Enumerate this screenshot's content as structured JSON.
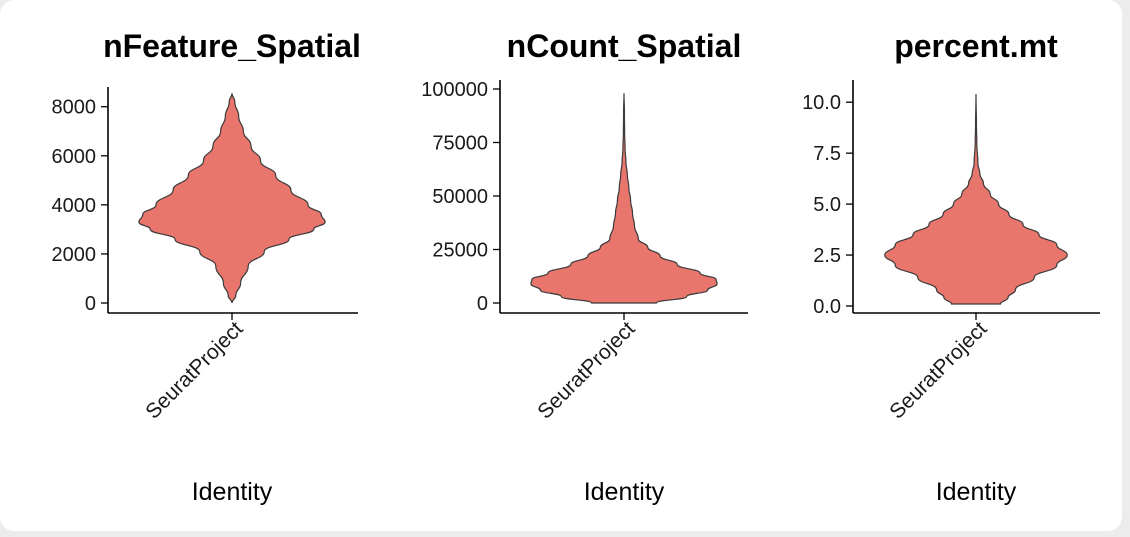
{
  "chart_data": [
    {
      "type": "violin",
      "title": "nFeature_Spatial",
      "xlabel": "Identity",
      "ylabel": "",
      "categories": [
        "SeuratProject"
      ],
      "yticks": [
        0,
        2000,
        4000,
        6000,
        8000
      ],
      "ylim": [
        0,
        8600
      ],
      "fill": "#e8766d",
      "violin_profile": [
        [
          0,
          0.0
        ],
        [
          300,
          0.04
        ],
        [
          800,
          0.09
        ],
        [
          1500,
          0.17
        ],
        [
          2100,
          0.34
        ],
        [
          2600,
          0.6
        ],
        [
          3000,
          0.86
        ],
        [
          3300,
          0.98
        ],
        [
          3600,
          0.94
        ],
        [
          4000,
          0.8
        ],
        [
          4600,
          0.62
        ],
        [
          5200,
          0.46
        ],
        [
          5800,
          0.3
        ],
        [
          6400,
          0.2
        ],
        [
          7000,
          0.12
        ],
        [
          7600,
          0.07
        ],
        [
          8200,
          0.03
        ],
        [
          8550,
          0.0
        ]
      ]
    },
    {
      "type": "violin",
      "title": "nCount_Spatial",
      "xlabel": "Identity",
      "ylabel": "",
      "categories": [
        "SeuratProject"
      ],
      "yticks": [
        0,
        25000,
        50000,
        75000,
        100000
      ],
      "ylim": [
        0,
        100000
      ],
      "fill": "#e8766d",
      "violin_profile": [
        [
          0,
          0.34
        ],
        [
          3000,
          0.66
        ],
        [
          6000,
          0.88
        ],
        [
          9000,
          0.98
        ],
        [
          11000,
          0.97
        ],
        [
          14000,
          0.8
        ],
        [
          18000,
          0.56
        ],
        [
          22000,
          0.38
        ],
        [
          26000,
          0.25
        ],
        [
          30000,
          0.15
        ],
        [
          36000,
          0.11
        ],
        [
          42000,
          0.09
        ],
        [
          48000,
          0.07
        ],
        [
          54000,
          0.05
        ],
        [
          60000,
          0.035
        ],
        [
          66000,
          0.02
        ],
        [
          72000,
          0.012
        ],
        [
          80000,
          0.006
        ],
        [
          90000,
          0.004
        ],
        [
          98000,
          0.0
        ]
      ]
    },
    {
      "type": "violin",
      "title": "percent.mt",
      "xlabel": "Identity",
      "ylabel": "",
      "categories": [
        "SeuratProject"
      ],
      "yticks": [
        0.0,
        2.5,
        5.0,
        7.5,
        10.0
      ],
      "ytick_labels": [
        "0.0",
        "2.5",
        "5.0",
        "7.5",
        "10.0"
      ],
      "ylim": [
        0,
        10.5
      ],
      "fill": "#e8766d",
      "violin_profile": [
        [
          0.1,
          0.26
        ],
        [
          0.4,
          0.34
        ],
        [
          0.8,
          0.42
        ],
        [
          1.4,
          0.62
        ],
        [
          2.0,
          0.86
        ],
        [
          2.5,
          0.97
        ],
        [
          3.0,
          0.86
        ],
        [
          3.5,
          0.67
        ],
        [
          4.0,
          0.5
        ],
        [
          4.5,
          0.35
        ],
        [
          5.0,
          0.24
        ],
        [
          5.5,
          0.15
        ],
        [
          6.0,
          0.08
        ],
        [
          6.5,
          0.04
        ],
        [
          7.0,
          0.02
        ],
        [
          8.0,
          0.008
        ],
        [
          9.0,
          0.004
        ],
        [
          10.4,
          0.0
        ]
      ]
    }
  ]
}
